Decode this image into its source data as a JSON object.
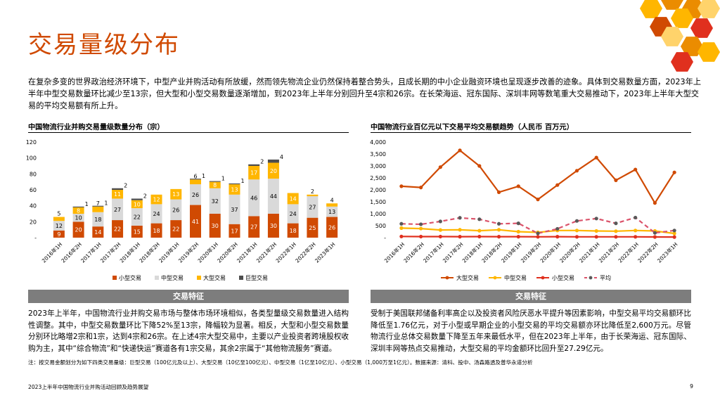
{
  "page": {
    "title": "交易量级分布",
    "intro": "在复杂多变的世界政治经济环境下，中型产业并购活动有所放缓，然而领先物流企业仍然保持着整合势头，且成长期的中小企业融资环境也呈现逐步改善的迹象。具体到交易数量方面，2023年上半年中型交易数量环比减少至13宗，但大型和小型交易数量逐渐增加，到2023年上半年分别回升至4宗和26宗。在长荣海运、冠东国际、深圳丰网等数笔重大交易推动下，2023年上半年大型交易的平均交易额有所上升。",
    "left_title": "中国物流行业并购交易量级数量分布（宗）",
    "right_title": "中国物流行业百亿元以下交易平均交易额趋势（人民币 百万元）",
    "left_feature_title": "交易特征",
    "right_feature_title": "交易特征",
    "left_feature_text": "2023年上半年，中国物流行业并购交易市场与整体市场环境相似，各类型量级交易数量进入结构性调整。其中，中型交易数量环比下降52%至13宗，降幅较为显著。相反，大型和小型交易数量分别环比略增2宗和1宗，达到4宗和26宗。在上述4宗大型交易中，主要以产业投资者跨境股权收购为主，其中“综合物流”和“快递快运”赛道各有1宗交易，其余2宗属于“其他物流服务”赛道。",
    "right_feature_text": "受制于美国联邦储备利率高企以及投资者风险厌恶水平提升等因素影响，中型交易平均交易额环比降低至1.76亿元，对于小型或早期企业的小型交易的平均交易额亦环比降低至2,600万元。尽管物流行业总体交易数量下降至五年来最低水平，但在2023年上半年，由于长荣海运、冠东国际、深圳丰网等热点交易推动，大型交易的平均金额环比回升至27.29亿元。",
    "note": "注：按交易金额划分为如下四类交易量级：巨型交易（100亿元及以上）、大型交易（10亿至100亿元）、中型交易（1亿至10亿元）、小型交易（1,000万至1亿元）。数据来源：清科、投中、汤森路透及普华永道分析",
    "footer": "2023上半年中国物流行业并购活动回顾及趋势展望",
    "page_number": "9"
  },
  "colors": {
    "accent": "#d04a02",
    "small": "#d04a02",
    "medium": "#d9d9d9",
    "large": "#ffb600",
    "giant": "#4d4d4d",
    "avg": "#db536a",
    "hex": [
      "#ffb600",
      "#eb8c00",
      "#d04a02",
      "#ffd36b",
      "#e0301e"
    ]
  },
  "chart_data": [
    {
      "type": "bar",
      "stacked": true,
      "categories": [
        "2016年1H",
        "2016年2H",
        "2017年1H",
        "2017年2H",
        "2018年1H",
        "2018年2H",
        "2019年1H",
        "2019年2H",
        "2020年1H",
        "2020年2H",
        "2021年1H",
        "2021年2H",
        "2022年1H",
        "2022年2H",
        "2023年1H"
      ],
      "series": [
        {
          "name": "小型交易",
          "values": [
            9,
            20,
            14,
            22,
            15,
            18,
            22,
            41,
            30,
            17,
            27,
            30,
            18,
            25,
            26
          ]
        },
        {
          "name": "中型交易",
          "values": [
            12,
            10,
            18,
            27,
            22,
            24,
            26,
            26,
            32,
            37,
            46,
            44,
            24,
            27,
            13
          ]
        },
        {
          "name": "大型交易",
          "values": [
            5,
            8,
            7,
            11,
            10,
            12,
            13,
            6,
            8,
            13,
            17,
            20,
            14,
            2,
            4
          ]
        },
        {
          "name": "巨型交易",
          "values": [
            0,
            1,
            1,
            2,
            2,
            0,
            0,
            1,
            1,
            1,
            2,
            4,
            0,
            0,
            0
          ]
        }
      ],
      "label_values": {
        "小型交易": [
          "9",
          "20",
          "14",
          "22",
          "15",
          "18",
          "22",
          "41",
          "30",
          "17",
          "27",
          "30",
          "18",
          "25",
          "26"
        ],
        "中型交易": [
          "12",
          "10",
          "18",
          "27",
          "22",
          "24",
          "26",
          "26",
          "32",
          "37",
          "46",
          "44",
          "24",
          "27",
          "13"
        ],
        "大型交易": [
          "5",
          "8",
          "7",
          "11",
          "10",
          "12",
          "13",
          "6",
          "8",
          "13",
          "17",
          "20",
          "14",
          "2",
          "4"
        ],
        "巨型交易": [
          "",
          "1",
          "1",
          "2",
          "2",
          "",
          "",
          "1",
          "1",
          "1",
          "2",
          "4",
          "",
          "",
          ""
        ]
      },
      "yticks": [
        "-",
        "20",
        "40",
        "60",
        "80",
        "100",
        "120"
      ],
      "ylim": [
        0,
        120
      ],
      "legend": [
        "小型交易",
        "中型交易",
        "大型交易",
        "巨型交易"
      ],
      "legend_position": "bottom"
    },
    {
      "type": "line",
      "categories": [
        "2016年1H",
        "2016年2H",
        "2017年1H",
        "2017年2H",
        "2018年1H",
        "2018年2H",
        "2019年1H",
        "2019年2H",
        "2020年1H",
        "2020年2H",
        "2021年1H",
        "2021年2H",
        "2022年1H",
        "2022年2H",
        "2023年1H"
      ],
      "series": [
        {
          "name": "大型交易",
          "values": [
            2150,
            2100,
            2950,
            3650,
            3000,
            1900,
            2150,
            1600,
            2200,
            2800,
            3350,
            2400,
            2850,
            1450,
            2729
          ]
        },
        {
          "name": "中型交易",
          "values": [
            400,
            380,
            320,
            330,
            290,
            330,
            250,
            220,
            300,
            300,
            280,
            270,
            300,
            280,
            176
          ]
        },
        {
          "name": "小型交易",
          "values": [
            50,
            45,
            45,
            40,
            45,
            40,
            40,
            35,
            40,
            35,
            35,
            35,
            35,
            30,
            26
          ]
        },
        {
          "name": "平均",
          "values": [
            580,
            560,
            680,
            830,
            770,
            580,
            600,
            180,
            370,
            700,
            800,
            600,
            840,
            200,
            300
          ]
        }
      ],
      "yticks": [
        "-",
        "500",
        "1,000",
        "1,500",
        "2,000",
        "2,500",
        "3,000",
        "3,500",
        "4,000"
      ],
      "ylim": [
        0,
        4000
      ],
      "legend": [
        "大型交易",
        "中型交易",
        "小型交易",
        "平均"
      ],
      "legend_position": "bottom"
    }
  ]
}
